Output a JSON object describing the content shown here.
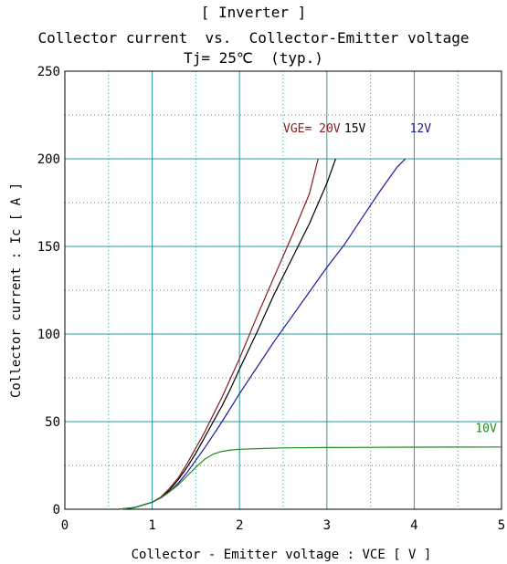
{
  "chart_data": {
    "type": "line",
    "title": "[ Inverter ]",
    "subtitle": "Collector current  vs.  Collector-Emitter voltage",
    "condition": "Tj= 25℃  (typ.)",
    "xlabel": "Collector - Emitter voltage  :  VCE  [ V ]",
    "ylabel": "Collector current  :  Ic  [ A ]",
    "xlim": [
      0,
      5
    ],
    "ylim": [
      0,
      250
    ],
    "x_ticks": [
      "0",
      "1",
      "2",
      "3",
      "4",
      "5"
    ],
    "y_ticks": [
      "0",
      "50",
      "100",
      "150",
      "200",
      "250"
    ],
    "grid": "major solid, minor dotted",
    "series": [
      {
        "name": "VGE= 20V",
        "color": "#8b1a1a",
        "x": [
          0.62,
          0.8,
          0.9,
          1.0,
          1.1,
          1.2,
          1.3,
          1.4,
          1.5,
          1.6,
          1.7,
          1.8,
          1.9,
          2.0,
          2.2,
          2.4,
          2.6,
          2.8,
          2.9
        ],
        "y": [
          0,
          1,
          2.5,
          4,
          7,
          12,
          18,
          26,
          35,
          44,
          54,
          64,
          75,
          86,
          110,
          133,
          156,
          180,
          200
        ]
      },
      {
        "name": "15V",
        "color": "#000000",
        "x": [
          0.62,
          0.8,
          0.9,
          1.0,
          1.1,
          1.2,
          1.3,
          1.4,
          1.5,
          1.6,
          1.7,
          1.8,
          1.9,
          2.0,
          2.2,
          2.4,
          2.6,
          2.8,
          3.0,
          3.1
        ],
        "y": [
          0,
          1,
          2.5,
          4,
          6.5,
          11,
          17,
          24,
          32,
          41,
          50,
          59,
          69,
          80,
          101,
          123,
          143,
          163,
          186,
          200
        ]
      },
      {
        "name": "12V",
        "color": "#1a1a9c",
        "x": [
          0.62,
          0.8,
          0.9,
          1.0,
          1.1,
          1.2,
          1.3,
          1.4,
          1.5,
          1.6,
          1.8,
          2.0,
          2.2,
          2.4,
          2.6,
          2.8,
          3.0,
          3.2,
          3.4,
          3.6,
          3.8,
          3.9
        ],
        "y": [
          0,
          1,
          2.5,
          4,
          6.5,
          10,
          15,
          21,
          28,
          35,
          50,
          66,
          81,
          96,
          110,
          124,
          138,
          151,
          166,
          181,
          195,
          200
        ]
      },
      {
        "name": "10V",
        "color": "#1f8a1f",
        "x": [
          0.62,
          0.8,
          0.9,
          1.0,
          1.1,
          1.2,
          1.3,
          1.4,
          1.5,
          1.6,
          1.7,
          1.8,
          1.9,
          2.0,
          2.2,
          2.5,
          3.0,
          4.0,
          5.0
        ],
        "y": [
          0,
          1,
          2.5,
          4,
          6.5,
          10,
          14,
          19,
          24,
          28.5,
          31.5,
          33,
          33.8,
          34.2,
          34.6,
          35,
          35.2,
          35.4,
          35.5
        ]
      }
    ],
    "annotations": [
      {
        "text": "VGE= 20V",
        "x": 2.5,
        "y": 215,
        "color": "#8b1a1a"
      },
      {
        "text": "15V",
        "x": 3.2,
        "y": 215,
        "color": "#000000"
      },
      {
        "text": "12V",
        "x": 3.95,
        "y": 215,
        "color": "#1a1a9c"
      },
      {
        "text": "10V",
        "x": 4.7,
        "y": 44,
        "color": "#1f8a1f"
      }
    ]
  }
}
